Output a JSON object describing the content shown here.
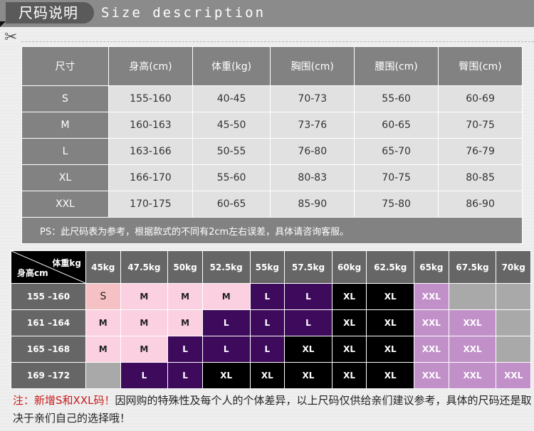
{
  "header": {
    "title_cn": "尺码说明",
    "title_en": "Size description"
  },
  "size_table": {
    "columns": [
      "尺寸",
      "身高(cm)",
      "体重(kg)",
      "胸围(cm)",
      "腰围(cm)",
      "臀围(cm)"
    ],
    "rows": [
      [
        "S",
        "155-160",
        "40-45",
        "70-73",
        "55-60",
        "60-69"
      ],
      [
        "M",
        "160-163",
        "45-50",
        "73-76",
        "60-65",
        "70-75"
      ],
      [
        "L",
        "163-166",
        "50-55",
        "76-80",
        "65-70",
        "76-79"
      ],
      [
        "XL",
        "166-170",
        "55-60",
        "80-83",
        "70-75",
        "80-85"
      ],
      [
        "XXL",
        "170-175",
        "60-65",
        "85-90",
        "75-80",
        "86-90"
      ]
    ],
    "note": "PS：此尺码表为参考，根据款式的不同有2cm左右误差，具体请咨询客服。"
  },
  "grid": {
    "corner_weight": "体重kg",
    "corner_height": "身高cm",
    "weights": [
      "45kg",
      "47.5kg",
      "50kg",
      "52.5kg",
      "55kg",
      "57.5kg",
      "60kg",
      "62.5kg",
      "65kg",
      "67.5kg",
      "70kg"
    ],
    "rows": [
      {
        "height": "155 –160",
        "sizes": [
          "S",
          "M",
          "M",
          "M",
          "L",
          "L",
          "XL",
          "XL",
          "XXL",
          "",
          ""
        ]
      },
      {
        "height": "161 –164",
        "sizes": [
          "M",
          "M",
          "M",
          "L",
          "L",
          "L",
          "XL",
          "XL",
          "XXL",
          "XXL",
          ""
        ]
      },
      {
        "height": "165 –168",
        "sizes": [
          "M",
          "M",
          "L",
          "L",
          "L",
          "XL",
          "XL",
          "XL",
          "XXL",
          "XXL",
          ""
        ]
      },
      {
        "height": "169 –172",
        "sizes": [
          "",
          "L",
          "L",
          "XL",
          "XL",
          "XL",
          "XL",
          "XL",
          "XXL",
          "XXL",
          "XXL"
        ]
      }
    ],
    "colors": {
      "S": "#f6c1c4",
      "M": "#fbd0e1",
      "L": "#3e0a5c",
      "XL": "#000000",
      "XXL": "#c190c9",
      "": "#a9a9a9"
    }
  },
  "footer": {
    "prefix": "注：新增",
    "highlight": "S和XXL码！",
    "text": "因网购的特殊性及每个人的个体差异，以上尺码仅供给亲们建议参考，具体的尺码还是取决于亲们自己的选择哦！"
  }
}
